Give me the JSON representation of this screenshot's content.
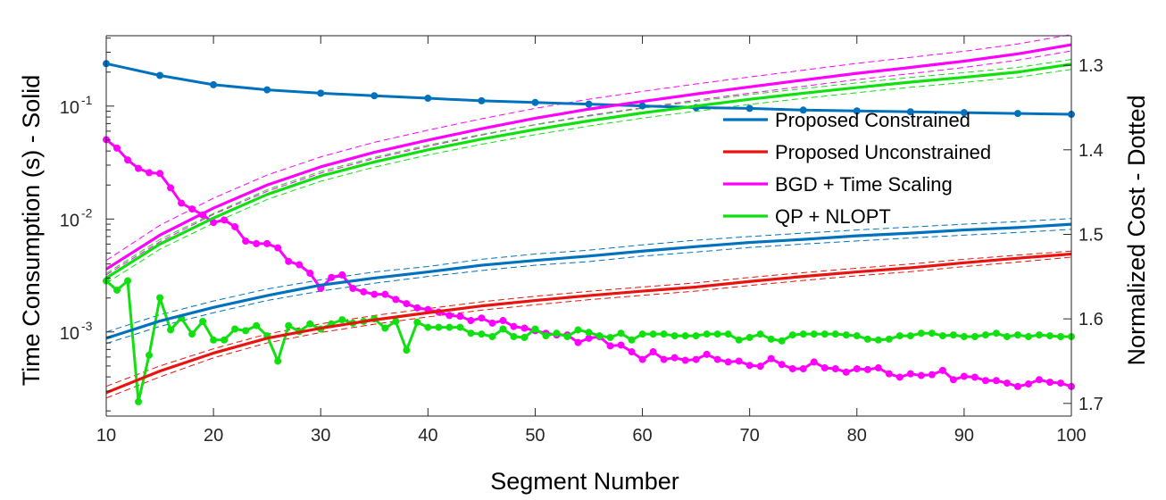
{
  "chart_data": {
    "type": "line",
    "title": "",
    "xlabel": "Segment Number",
    "ylabel_left": "Time Consumption (s) - Solid",
    "ylabel_right": "Normalized Cost - Dotted",
    "xlim": [
      10,
      100
    ],
    "ylim_left": [
      0.00018,
      0.42
    ],
    "yscale_left": "log",
    "ylim_right": [
      1.265,
      1.715
    ],
    "right_axis_reversed": true,
    "x_ticks": [
      10,
      20,
      30,
      40,
      50,
      60,
      70,
      80,
      90,
      100
    ],
    "x_tick_labels": [
      "10",
      "20",
      "30",
      "40",
      "50",
      "60",
      "70",
      "80",
      "90",
      "100"
    ],
    "y_left_ticks": [
      0.001,
      0.01,
      0.1
    ],
    "y_left_tick_labels": [
      {
        "base": "10",
        "exp": "-3"
      },
      {
        "base": "10",
        "exp": "-2"
      },
      {
        "base": "10",
        "exp": "-1"
      }
    ],
    "y_right_ticks": [
      1.3,
      1.4,
      1.5,
      1.6,
      1.7
    ],
    "y_right_tick_labels": [
      "1.3",
      "1.4",
      "1.5",
      "1.6",
      "1.7"
    ],
    "legend": {
      "position": "right",
      "entries": [
        {
          "label": "Proposed Constrained",
          "color": "#0072BD"
        },
        {
          "label": "Proposed Unconstrained",
          "color": "#E8130E"
        },
        {
          "label": "BGD + Time Scaling",
          "color": "#FF00FF"
        },
        {
          "label": "QP + NLOPT",
          "color": "#10E010"
        }
      ]
    },
    "time_series": [
      {
        "name": "Proposed Constrained",
        "color": "#0072BD",
        "style": "solid",
        "x": [
          10,
          15,
          20,
          25,
          30,
          35,
          40,
          45,
          50,
          55,
          60,
          65,
          70,
          75,
          80,
          85,
          90,
          95,
          100
        ],
        "y": [
          0.00088,
          0.00125,
          0.00165,
          0.0021,
          0.0026,
          0.003,
          0.0034,
          0.0039,
          0.0043,
          0.0047,
          0.0052,
          0.0057,
          0.0062,
          0.0066,
          0.0071,
          0.0075,
          0.008,
          0.0084,
          0.009
        ],
        "band_upper": [
          0.001,
          0.00142,
          0.00188,
          0.0024,
          0.0029,
          0.0034,
          0.0038,
          0.0044,
          0.0049,
          0.0053,
          0.0059,
          0.0065,
          0.007,
          0.0075,
          0.008,
          0.0085,
          0.009,
          0.0095,
          0.0101
        ],
        "band_lower": [
          0.00079,
          0.00112,
          0.00148,
          0.0019,
          0.0023,
          0.0027,
          0.0031,
          0.0035,
          0.0039,
          0.0042,
          0.0047,
          0.0051,
          0.0056,
          0.006,
          0.0064,
          0.0068,
          0.0072,
          0.0076,
          0.0081
        ]
      },
      {
        "name": "Proposed Unconstrained",
        "color": "#E8130E",
        "style": "solid",
        "x": [
          10,
          15,
          20,
          25,
          30,
          35,
          40,
          45,
          50,
          55,
          60,
          65,
          70,
          75,
          80,
          85,
          90,
          95,
          100
        ],
        "y": [
          0.00029,
          0.00045,
          0.00065,
          0.00088,
          0.00108,
          0.00128,
          0.00148,
          0.0017,
          0.0019,
          0.0021,
          0.0023,
          0.0025,
          0.0028,
          0.0031,
          0.0034,
          0.0037,
          0.0041,
          0.0045,
          0.0049
        ],
        "band_upper": [
          0.00033,
          0.0005,
          0.00071,
          0.00096,
          0.00118,
          0.0014,
          0.00161,
          0.00185,
          0.00207,
          0.00229,
          0.0025,
          0.00272,
          0.00304,
          0.00335,
          0.00367,
          0.004,
          0.0044,
          0.0048,
          0.0052
        ],
        "band_lower": [
          0.00026,
          0.0004,
          0.00059,
          0.0008,
          0.00099,
          0.00117,
          0.00136,
          0.00156,
          0.00174,
          0.00193,
          0.00211,
          0.0023,
          0.00258,
          0.00286,
          0.00314,
          0.00342,
          0.00379,
          0.00416,
          0.0046
        ]
      },
      {
        "name": "BGD + Time Scaling",
        "color": "#FF00FF",
        "style": "solid",
        "x": [
          10,
          15,
          20,
          25,
          30,
          35,
          40,
          45,
          50,
          55,
          60,
          65,
          70,
          75,
          80,
          85,
          90,
          95,
          100
        ],
        "y": [
          0.0036,
          0.0072,
          0.0125,
          0.02,
          0.029,
          0.039,
          0.05,
          0.063,
          0.078,
          0.094,
          0.11,
          0.128,
          0.148,
          0.17,
          0.195,
          0.22,
          0.25,
          0.29,
          0.35
        ],
        "band_upper": [
          0.0043,
          0.0088,
          0.0153,
          0.0245,
          0.0355,
          0.0478,
          0.0612,
          0.0772,
          0.0955,
          0.115,
          0.135,
          0.157,
          0.181,
          0.208,
          0.239,
          0.27,
          0.306,
          0.355,
          0.43
        ],
        "band_lower": [
          0.0032,
          0.0063,
          0.011,
          0.0176,
          0.0255,
          0.0343,
          0.044,
          0.0554,
          0.0686,
          0.0827,
          0.0968,
          0.1126,
          0.1302,
          0.1496,
          0.1716,
          0.1936,
          0.22,
          0.255,
          0.308
        ]
      },
      {
        "name": "QP + NLOPT",
        "color": "#10E010",
        "style": "solid",
        "x": [
          10,
          15,
          20,
          25,
          30,
          35,
          40,
          45,
          50,
          55,
          60,
          65,
          70,
          75,
          80,
          85,
          90,
          95,
          100
        ],
        "y": [
          0.003,
          0.006,
          0.0102,
          0.0165,
          0.024,
          0.032,
          0.041,
          0.051,
          0.062,
          0.074,
          0.087,
          0.1,
          0.115,
          0.13,
          0.146,
          0.163,
          0.18,
          0.2,
          0.235
        ],
        "band_upper": [
          0.0033,
          0.0066,
          0.0112,
          0.0182,
          0.0264,
          0.0352,
          0.0451,
          0.0561,
          0.0682,
          0.0814,
          0.0957,
          0.11,
          0.1265,
          0.143,
          0.1606,
          0.1793,
          0.198,
          0.22,
          0.2585
        ],
        "band_lower": [
          0.0027,
          0.0054,
          0.0092,
          0.0149,
          0.0216,
          0.0288,
          0.0369,
          0.0459,
          0.0558,
          0.0666,
          0.0783,
          0.09,
          0.1035,
          0.117,
          0.1314,
          0.1467,
          0.162,
          0.18,
          0.2115
        ]
      }
    ],
    "cost_series": [
      {
        "name": "Proposed Constrained",
        "color": "#0072BD",
        "style": "dotted",
        "x": [
          10,
          15,
          20,
          25,
          30,
          35,
          40,
          45,
          50,
          55,
          60,
          65,
          70,
          75,
          80,
          85,
          90,
          95,
          100
        ],
        "y": [
          1.298,
          1.312,
          1.323,
          1.329,
          1.333,
          1.336,
          1.339,
          1.342,
          1.344,
          1.346,
          1.348,
          1.35,
          1.351,
          1.353,
          1.354,
          1.355,
          1.356,
          1.357,
          1.358
        ]
      },
      {
        "name": "BGD + Time Scaling",
        "color": "#FF00FF",
        "style": "dotted",
        "x": [
          10,
          11,
          12,
          13,
          14,
          15,
          16,
          17,
          18,
          19,
          20,
          21,
          22,
          23,
          24,
          25,
          26,
          27,
          28,
          29,
          30,
          31,
          32,
          33,
          34,
          35,
          36,
          37,
          38,
          39,
          40,
          41,
          42,
          43,
          44,
          45,
          46,
          47,
          48,
          49,
          50,
          51,
          52,
          53,
          54,
          55,
          56,
          57,
          58,
          59,
          60,
          61,
          62,
          63,
          64,
          65,
          66,
          67,
          68,
          69,
          70,
          71,
          72,
          73,
          74,
          75,
          76,
          77,
          78,
          79,
          80,
          81,
          82,
          83,
          84,
          85,
          86,
          87,
          88,
          89,
          90,
          91,
          92,
          93,
          94,
          95,
          96,
          97,
          98,
          99,
          100
        ],
        "y": [
          1.388,
          1.398,
          1.412,
          1.422,
          1.427,
          1.428,
          1.445,
          1.463,
          1.47,
          1.477,
          1.486,
          1.483,
          1.491,
          1.508,
          1.511,
          1.511,
          1.516,
          1.532,
          1.536,
          1.546,
          1.564,
          1.551,
          1.548,
          1.564,
          1.568,
          1.571,
          1.571,
          1.577,
          1.582,
          1.587,
          1.589,
          1.592,
          1.596,
          1.597,
          1.602,
          1.599,
          1.605,
          1.602,
          1.609,
          1.611,
          1.614,
          1.617,
          1.619,
          1.619,
          1.628,
          1.623,
          1.621,
          1.632,
          1.631,
          1.639,
          1.648,
          1.639,
          1.648,
          1.646,
          1.649,
          1.648,
          1.642,
          1.648,
          1.651,
          1.65,
          1.655,
          1.656,
          1.647,
          1.654,
          1.659,
          1.659,
          1.651,
          1.658,
          1.659,
          1.663,
          1.659,
          1.66,
          1.658,
          1.665,
          1.669,
          1.665,
          1.667,
          1.666,
          1.661,
          1.672,
          1.668,
          1.669,
          1.673,
          1.673,
          1.676,
          1.68,
          1.677,
          1.672,
          1.675,
          1.676,
          1.68
        ]
      },
      {
        "name": "QP + NLOPT",
        "color": "#10E010",
        "style": "dotted",
        "x": [
          10,
          11,
          12,
          13,
          14,
          15,
          16,
          17,
          18,
          19,
          20,
          21,
          22,
          23,
          24,
          25,
          26,
          27,
          28,
          29,
          30,
          31,
          32,
          33,
          34,
          35,
          36,
          37,
          38,
          39,
          40,
          41,
          42,
          43,
          44,
          45,
          46,
          47,
          48,
          49,
          50,
          51,
          52,
          53,
          54,
          55,
          56,
          57,
          58,
          59,
          60,
          61,
          62,
          63,
          64,
          65,
          66,
          67,
          68,
          69,
          70,
          71,
          72,
          73,
          74,
          75,
          76,
          77,
          78,
          79,
          80,
          81,
          82,
          83,
          84,
          85,
          86,
          87,
          88,
          89,
          90,
          91,
          92,
          93,
          94,
          95,
          96,
          97,
          98,
          99,
          100
        ],
        "y": [
          1.555,
          1.566,
          1.555,
          1.698,
          1.643,
          1.575,
          1.613,
          1.599,
          1.618,
          1.603,
          1.625,
          1.625,
          1.612,
          1.614,
          1.608,
          1.62,
          1.65,
          1.608,
          1.615,
          1.606,
          1.612,
          1.606,
          1.601,
          1.605,
          1.603,
          1.6,
          1.611,
          1.603,
          1.637,
          1.604,
          1.61,
          1.61,
          1.61,
          1.61,
          1.617,
          1.618,
          1.621,
          1.612,
          1.621,
          1.622,
          1.612,
          1.62,
          1.617,
          1.621,
          1.613,
          1.616,
          1.62,
          1.622,
          1.617,
          1.625,
          1.618,
          1.618,
          1.618,
          1.62,
          1.62,
          1.62,
          1.618,
          1.618,
          1.618,
          1.625,
          1.622,
          1.618,
          1.624,
          1.626,
          1.619,
          1.618,
          1.618,
          1.618,
          1.618,
          1.619,
          1.62,
          1.624,
          1.625,
          1.624,
          1.62,
          1.62,
          1.617,
          1.617,
          1.62,
          1.619,
          1.621,
          1.621,
          1.619,
          1.617,
          1.621,
          1.619,
          1.621,
          1.619,
          1.62,
          1.621,
          1.621
        ]
      }
    ]
  }
}
